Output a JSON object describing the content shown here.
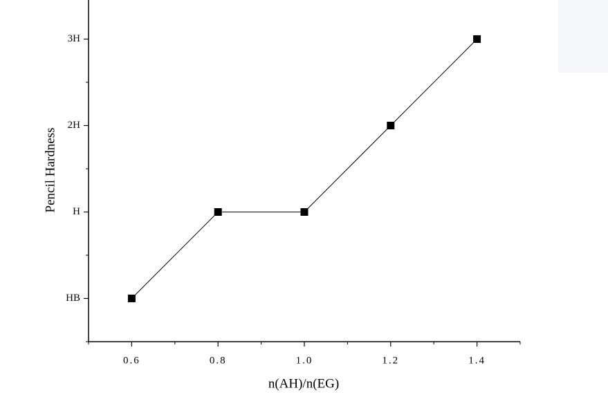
{
  "chart_data": {
    "type": "line",
    "x_label": "n(AH)/n(EG)",
    "y_label": "Pencil Hardness",
    "x": [
      0.6,
      0.8,
      1.0,
      1.2,
      1.4
    ],
    "series": [
      {
        "color": "#000000",
        "values": [
          0,
          1,
          1,
          2,
          3
        ]
      }
    ],
    "xlim": [
      0.5,
      1.5
    ],
    "xticks": [
      0.6,
      0.8,
      {
        "value": 1,
        "label": "1.0"
      },
      1.2,
      1.4
    ],
    "x_minor_ticks": [
      0.5,
      0.7,
      0.9,
      1.1,
      1.3,
      1.5
    ],
    "ylim": [
      -0.5,
      3.5
    ],
    "yticks": [
      {
        "value": 0,
        "label": "HB"
      },
      {
        "value": 1,
        "label": "H"
      },
      {
        "value": 2,
        "label": "2H"
      },
      {
        "value": 3,
        "label": "3H"
      }
    ],
    "y_minor_ticks": [
      -0.5,
      0.5,
      1.5,
      2.5,
      3.5
    ],
    "marker": "square",
    "grid": false
  }
}
